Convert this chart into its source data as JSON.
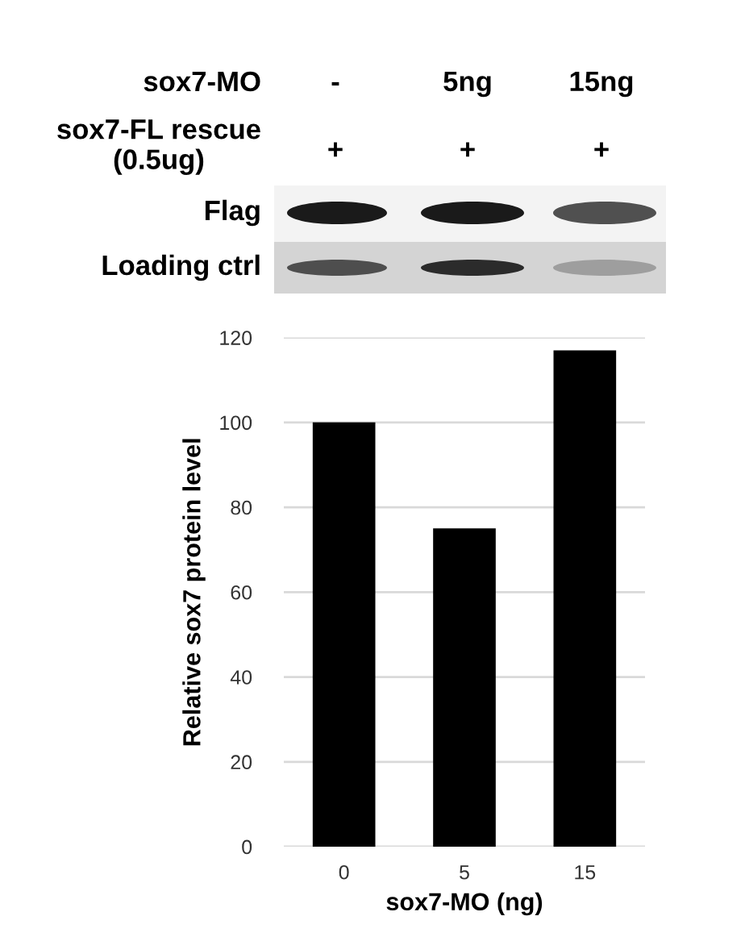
{
  "chart_data": {
    "type": "bar",
    "categories": [
      "0",
      "5",
      "15"
    ],
    "values": [
      100,
      75,
      117
    ],
    "color": "#000000",
    "ylim": [
      0,
      120
    ],
    "yticks": [
      0,
      20,
      40,
      60,
      80,
      100,
      120
    ],
    "grid": "y",
    "xlabel": "sox7-MO (ng)",
    "ylabel": "Relative sox7 protein level",
    "annotations": [
      "sox7-MO",
      "-",
      "5ng",
      "15ng",
      "sox7-FL rescue\n(0.5ug)",
      "+",
      "+",
      "+",
      "Flag",
      "Loading ctrl"
    ]
  }
}
